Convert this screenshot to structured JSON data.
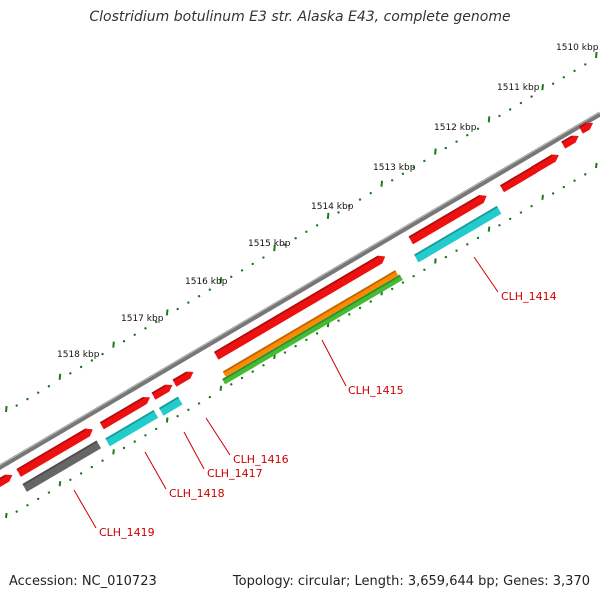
{
  "title": "Clostridium botulinum E3 str. Alaska E43, complete genome",
  "footer": {
    "accession": "Accession: NC_010723",
    "topology": "Topology: circular; Length: 3,659,644 bp; Genes: 3,370"
  },
  "ruler": {
    "labels": [
      "1510 kbp",
      "1511 kbp",
      "1512 kbp",
      "1513 kbp",
      "1514 kbp",
      "1515 kbp",
      "1516 kbp",
      "1517 kbp",
      "1518 kbp"
    ]
  },
  "gene_labels": [
    "CLH_1414",
    "CLH_1415",
    "CLH_1416",
    "CLH_1417",
    "CLH_1418",
    "CLH_1419"
  ],
  "colors": {
    "cds": "#ee1111",
    "cog_cyan": "#22cccc",
    "cog_orange": "#ff8800",
    "cog_green": "#44bb33",
    "cog_gray": "#666666",
    "backbone": "#777777",
    "tick": "#1a7a1a",
    "label": "#cc0000"
  }
}
